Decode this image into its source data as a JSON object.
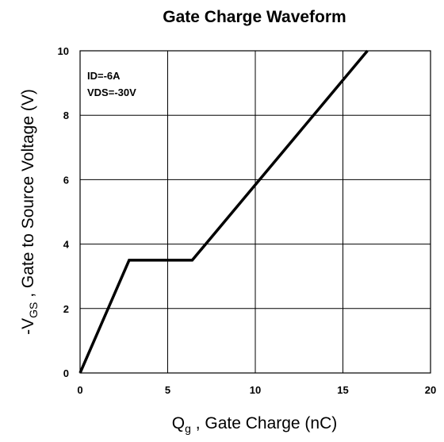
{
  "chart_data": {
    "type": "line",
    "title": "Gate Charge Waveform",
    "xlabel": {
      "main": "Q",
      "sub": "g",
      "rest": " , Gate Charge (nC)"
    },
    "ylabel": {
      "pre": "-V",
      "sub": "GS",
      "rest": " , Gate to Source Voltage (V)"
    },
    "xlim": [
      0,
      20
    ],
    "ylim": [
      0,
      10
    ],
    "xticks": [
      0,
      5,
      10,
      15,
      20
    ],
    "yticks": [
      0,
      2,
      4,
      6,
      8,
      10
    ],
    "grid": true,
    "annotations": [
      "ID=-6A",
      "VDS=-30V"
    ],
    "series": [
      {
        "x": [
          0,
          2.8,
          6.4,
          16.4
        ],
        "y": [
          0,
          3.5,
          3.5,
          10
        ]
      }
    ],
    "line_color": "#000000"
  }
}
